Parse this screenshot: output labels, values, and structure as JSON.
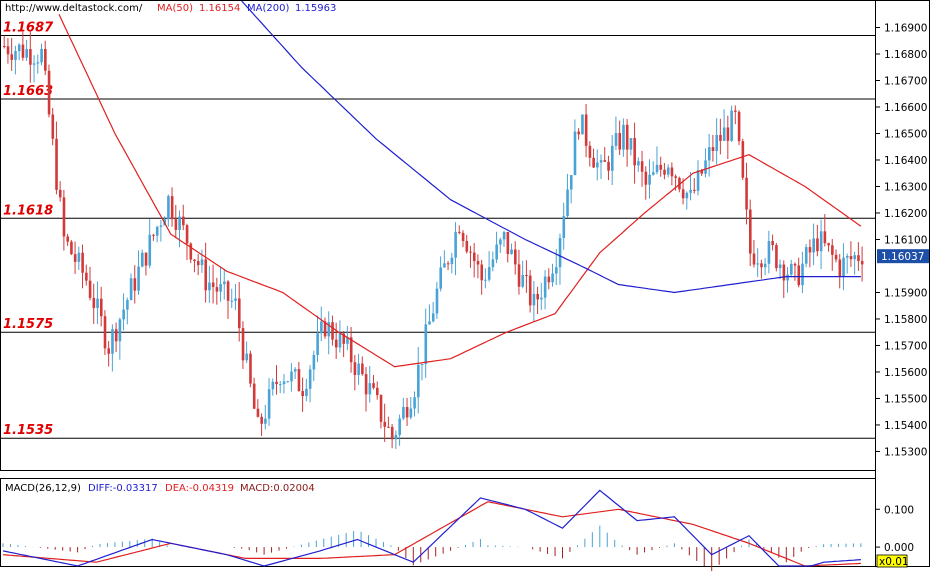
{
  "header": {
    "url": "http://www.deltastock.com/",
    "ma50_label": "MA(50)",
    "ma50_value": "1.16154",
    "ma200_label": "MA(200)",
    "ma200_value": "1.15963"
  },
  "macd_header": {
    "title": "MACD(26,12,9)",
    "diff": "DIFF:-0.03317",
    "dea": "DEA:-0.04319",
    "macd": "MACD:0.02004"
  },
  "colors": {
    "up_candle": "#4aa3d6",
    "down_candle": "#d23a3a",
    "ma50": "#e02020",
    "ma200": "#2020d0",
    "level_label": "#e00000",
    "price_box": "#1e4fa8"
  },
  "chart_data": [
    {
      "type": "candlestick",
      "title": "",
      "ylim": [
        1.1523,
        1.17
      ],
      "y_ticks": [
        "1.16900",
        "1.16800",
        "1.16700",
        "1.16600",
        "1.16500",
        "1.16400",
        "1.16300",
        "1.16200",
        "1.16100",
        "1.15900",
        "1.15800",
        "1.15700",
        "1.15600",
        "1.15500",
        "1.15400",
        "1.15300"
      ],
      "current_price": "1.16037",
      "levels": [
        {
          "label": "1.1687",
          "value": 1.1687
        },
        {
          "label": "1.1663",
          "value": 1.1663
        },
        {
          "label": "1.1618",
          "value": 1.1618
        },
        {
          "label": "1.1575",
          "value": 1.1575
        },
        {
          "label": "1.1535",
          "value": 1.1535
        }
      ],
      "anchors": [
        {
          "bar": 0,
          "price": 1.1683
        },
        {
          "bar": 10,
          "price": 1.168
        },
        {
          "bar": 16,
          "price": 1.161
        },
        {
          "bar": 22,
          "price": 1.1595
        },
        {
          "bar": 28,
          "price": 1.157
        },
        {
          "bar": 36,
          "price": 1.1598
        },
        {
          "bar": 44,
          "price": 1.1625
        },
        {
          "bar": 54,
          "price": 1.1595
        },
        {
          "bar": 62,
          "price": 1.1585
        },
        {
          "bar": 68,
          "price": 1.1538
        },
        {
          "bar": 74,
          "price": 1.156
        },
        {
          "bar": 80,
          "price": 1.1555
        },
        {
          "bar": 86,
          "price": 1.1578
        },
        {
          "bar": 92,
          "price": 1.1568
        },
        {
          "bar": 98,
          "price": 1.1553
        },
        {
          "bar": 104,
          "price": 1.1535
        },
        {
          "bar": 110,
          "price": 1.1555
        },
        {
          "bar": 116,
          "price": 1.159
        },
        {
          "bar": 122,
          "price": 1.1617
        },
        {
          "bar": 128,
          "price": 1.1595
        },
        {
          "bar": 134,
          "price": 1.161
        },
        {
          "bar": 142,
          "price": 1.1585
        },
        {
          "bar": 148,
          "price": 1.1605
        },
        {
          "bar": 154,
          "price": 1.1655
        },
        {
          "bar": 160,
          "price": 1.1635
        },
        {
          "bar": 166,
          "price": 1.165
        },
        {
          "bar": 172,
          "price": 1.163
        },
        {
          "bar": 178,
          "price": 1.164
        },
        {
          "bar": 184,
          "price": 1.1625
        },
        {
          "bar": 190,
          "price": 1.1645
        },
        {
          "bar": 196,
          "price": 1.1655
        },
        {
          "bar": 200,
          "price": 1.1605
        },
        {
          "bar": 206,
          "price": 1.1605
        },
        {
          "bar": 212,
          "price": 1.1595
        },
        {
          "bar": 218,
          "price": 1.161
        },
        {
          "bar": 224,
          "price": 1.16
        },
        {
          "bar": 230,
          "price": 1.1605
        }
      ],
      "ma50": [
        {
          "bar": 15,
          "value": 1.1695
        },
        {
          "bar": 30,
          "value": 1.165
        },
        {
          "bar": 45,
          "value": 1.1612
        },
        {
          "bar": 60,
          "value": 1.1598
        },
        {
          "bar": 75,
          "value": 1.159
        },
        {
          "bar": 90,
          "value": 1.1575
        },
        {
          "bar": 105,
          "value": 1.1562
        },
        {
          "bar": 120,
          "value": 1.1565
        },
        {
          "bar": 135,
          "value": 1.1575
        },
        {
          "bar": 148,
          "value": 1.1582
        },
        {
          "bar": 160,
          "value": 1.1605
        },
        {
          "bar": 172,
          "value": 1.162
        },
        {
          "bar": 185,
          "value": 1.1635
        },
        {
          "bar": 200,
          "value": 1.1642
        },
        {
          "bar": 215,
          "value": 1.163
        },
        {
          "bar": 230,
          "value": 1.1615
        }
      ],
      "ma200": [
        {
          "bar": 64,
          "value": 1.17
        },
        {
          "bar": 80,
          "value": 1.1675
        },
        {
          "bar": 100,
          "value": 1.1648
        },
        {
          "bar": 120,
          "value": 1.1625
        },
        {
          "bar": 140,
          "value": 1.161
        },
        {
          "bar": 155,
          "value": 1.16
        },
        {
          "bar": 165,
          "value": 1.1593
        },
        {
          "bar": 180,
          "value": 1.159
        },
        {
          "bar": 195,
          "value": 1.1593
        },
        {
          "bar": 210,
          "value": 1.1596
        },
        {
          "bar": 230,
          "value": 1.1596
        }
      ]
    },
    {
      "type": "macd",
      "ylim": [
        -0.05,
        0.18
      ],
      "y_ticks": [
        "0.100",
        "0.000",
        "x0.01"
      ],
      "diff": [
        {
          "bar": 0,
          "value": -0.01
        },
        {
          "bar": 20,
          "value": -0.05
        },
        {
          "bar": 40,
          "value": 0.02
        },
        {
          "bar": 60,
          "value": -0.02
        },
        {
          "bar": 70,
          "value": -0.05
        },
        {
          "bar": 85,
          "value": -0.01
        },
        {
          "bar": 95,
          "value": 0.02
        },
        {
          "bar": 110,
          "value": -0.04
        },
        {
          "bar": 128,
          "value": 0.13
        },
        {
          "bar": 140,
          "value": 0.1
        },
        {
          "bar": 150,
          "value": 0.05
        },
        {
          "bar": 160,
          "value": 0.15
        },
        {
          "bar": 170,
          "value": 0.07
        },
        {
          "bar": 180,
          "value": 0.08
        },
        {
          "bar": 190,
          "value": -0.02
        },
        {
          "bar": 200,
          "value": 0.03
        },
        {
          "bar": 210,
          "value": -0.07
        },
        {
          "bar": 220,
          "value": -0.04
        },
        {
          "bar": 230,
          "value": -0.03317
        }
      ],
      "dea": [
        {
          "bar": 0,
          "value": -0.02
        },
        {
          "bar": 25,
          "value": -0.04
        },
        {
          "bar": 45,
          "value": 0.01
        },
        {
          "bar": 65,
          "value": -0.03
        },
        {
          "bar": 85,
          "value": -0.03
        },
        {
          "bar": 105,
          "value": -0.02
        },
        {
          "bar": 130,
          "value": 0.12
        },
        {
          "bar": 150,
          "value": 0.08
        },
        {
          "bar": 165,
          "value": 0.1
        },
        {
          "bar": 185,
          "value": 0.06
        },
        {
          "bar": 200,
          "value": 0.01
        },
        {
          "bar": 215,
          "value": -0.05
        },
        {
          "bar": 230,
          "value": -0.04319
        }
      ]
    }
  ]
}
